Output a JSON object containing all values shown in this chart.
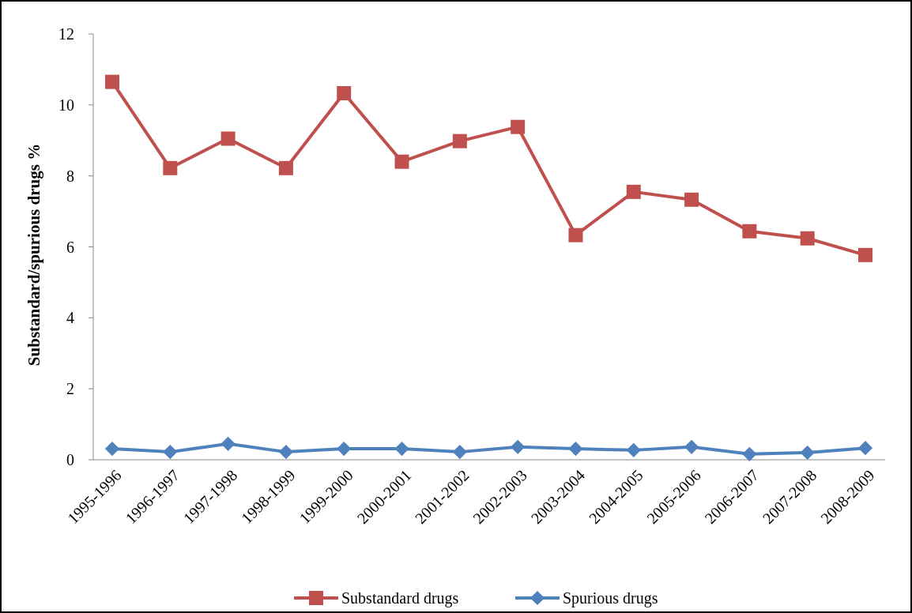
{
  "chart_data": {
    "type": "line",
    "ylabel": "Substandard/spurious drugs %",
    "categories": [
      "1995-1996",
      "1996-1997",
      "1997-1998",
      "1998-1999",
      "1999-2000",
      "2000-2001",
      "2001-2002",
      "2002-2003",
      "2003-2004",
      "2004-2005",
      "2005-2006",
      "2006-2007",
      "2007-2008",
      "2008-2009"
    ],
    "series": [
      {
        "name": "Substandard drugs",
        "color": "#c0504d",
        "marker": "square",
        "values": [
          10.65,
          8.22,
          9.05,
          8.22,
          10.33,
          8.4,
          8.98,
          9.38,
          6.33,
          7.55,
          7.33,
          6.44,
          6.24,
          5.77
        ]
      },
      {
        "name": "Spurious drugs",
        "color": "#4f81bd",
        "marker": "diamond",
        "values": [
          0.31,
          0.22,
          0.45,
          0.22,
          0.31,
          0.31,
          0.22,
          0.36,
          0.31,
          0.27,
          0.36,
          0.16,
          0.2,
          0.33
        ]
      }
    ],
    "ylim": [
      0,
      12
    ],
    "yticks": [
      0,
      2,
      4,
      6,
      8,
      10,
      12
    ],
    "grid": false,
    "legend": "bottom",
    "line_style": "solid"
  }
}
